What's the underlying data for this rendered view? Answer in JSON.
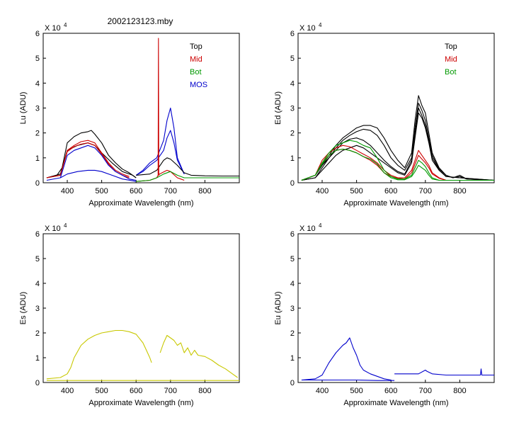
{
  "window_title": "2002123123.mby",
  "chart_data": [
    {
      "id": "lu",
      "type": "line",
      "xlabel": "Approximate Wavelength (nm)",
      "ylabel": "Lu (ADU)",
      "multiplier": "X 10",
      "exponent": "4",
      "xlim": [
        330,
        900
      ],
      "ylim": [
        0,
        6
      ],
      "xticks": [
        400,
        500,
        600,
        700,
        800
      ],
      "yticks": [
        0,
        1,
        2,
        3,
        4,
        5,
        6
      ],
      "legend_position": "top-right",
      "legend": [
        {
          "label": "Top",
          "color": "#000000"
        },
        {
          "label": "Mid",
          "color": "#cc0000"
        },
        {
          "label": "Bot",
          "color": "#009900"
        },
        {
          "label": "MOS",
          "color": "#0000cc"
        }
      ],
      "series": [
        {
          "color": "#000000",
          "x": [
            340,
            370,
            385,
            400,
            420,
            440,
            460,
            470,
            480,
            500,
            520,
            540,
            560,
            580,
            600
          ],
          "y": [
            0.2,
            0.3,
            0.6,
            1.6,
            1.85,
            2.0,
            2.05,
            2.1,
            1.95,
            1.6,
            1.1,
            0.8,
            0.55,
            0.4,
            0.2
          ]
        },
        {
          "color": "#000000",
          "x": [
            340,
            380,
            400,
            430,
            460,
            480,
            500,
            530,
            560,
            590,
            600
          ],
          "y": [
            0.2,
            0.35,
            1.3,
            1.5,
            1.6,
            1.5,
            1.2,
            0.8,
            0.45,
            0.3,
            0.2
          ]
        },
        {
          "color": "#cc0000",
          "x": [
            340,
            380,
            400,
            420,
            440,
            460,
            480,
            500,
            520,
            540,
            560,
            580
          ],
          "y": [
            0.2,
            0.3,
            1.3,
            1.5,
            1.65,
            1.7,
            1.6,
            1.2,
            0.8,
            0.5,
            0.35,
            0.25
          ]
        },
        {
          "color": "#cc0000",
          "x": [
            340,
            380,
            400,
            420,
            440,
            460,
            480,
            500,
            520,
            540,
            560,
            580
          ],
          "y": [
            0.2,
            0.3,
            1.25,
            1.45,
            1.55,
            1.6,
            1.5,
            1.15,
            0.75,
            0.45,
            0.3,
            0.2
          ]
        },
        {
          "color": "#0000cc",
          "x": [
            380,
            400,
            420,
            440,
            460,
            480,
            500,
            520,
            540,
            560,
            580,
            600
          ],
          "y": [
            0.2,
            1.1,
            1.3,
            1.4,
            1.5,
            1.4,
            1.1,
            0.7,
            0.45,
            0.3,
            0.15,
            0.1
          ]
        },
        {
          "color": "#0000cc",
          "x": [
            340,
            380,
            400,
            430,
            460,
            480,
            500,
            530,
            560,
            590,
            600
          ],
          "y": [
            0.1,
            0.2,
            0.35,
            0.45,
            0.5,
            0.5,
            0.45,
            0.3,
            0.15,
            0.08,
            0.05
          ]
        },
        {
          "color": "#0000cc",
          "x": [
            600,
            620,
            640,
            660,
            680,
            690,
            700,
            710,
            720,
            740
          ],
          "y": [
            0.3,
            0.5,
            0.8,
            1.0,
            1.7,
            2.5,
            3.0,
            2.2,
            1.0,
            0.35
          ]
        },
        {
          "color": "#0000cc",
          "x": [
            600,
            620,
            640,
            660,
            680,
            690,
            700,
            710,
            720,
            740
          ],
          "y": [
            0.3,
            0.45,
            0.7,
            0.9,
            1.3,
            1.8,
            2.1,
            1.6,
            0.9,
            0.35
          ]
        },
        {
          "color": "#000000",
          "x": [
            600,
            640,
            660,
            680,
            690,
            700,
            720,
            740,
            760,
            800,
            850,
            900
          ],
          "y": [
            0.3,
            0.35,
            0.5,
            0.9,
            1.0,
            0.95,
            0.7,
            0.4,
            0.3,
            0.28,
            0.27,
            0.27
          ]
        },
        {
          "color": "#cc0000",
          "x": [
            600,
            640,
            660,
            664,
            665,
            666,
            668,
            690,
            700,
            720,
            740
          ],
          "y": [
            0.05,
            0.1,
            0.2,
            0.3,
            5.8,
            0.3,
            0.35,
            0.5,
            0.45,
            0.2,
            0.1
          ]
        },
        {
          "color": "#009900",
          "x": [
            600,
            640,
            660,
            680,
            700,
            720,
            740,
            780,
            820,
            860,
            900
          ],
          "y": [
            0.05,
            0.1,
            0.2,
            0.35,
            0.45,
            0.3,
            0.2,
            0.2,
            0.2,
            0.2,
            0.2
          ]
        }
      ]
    },
    {
      "id": "ed",
      "type": "line",
      "xlabel": "Approximate Wavelength (nm)",
      "ylabel": "Ed  (ADU)",
      "multiplier": "X 10",
      "exponent": "4",
      "xlim": [
        330,
        900
      ],
      "ylim": [
        0,
        6
      ],
      "xticks": [
        400,
        500,
        600,
        700,
        800
      ],
      "yticks": [
        0,
        1,
        2,
        3,
        4,
        5,
        6
      ],
      "legend_position": "top-right",
      "legend": [
        {
          "label": "Top",
          "color": "#000000"
        },
        {
          "label": "Mid",
          "color": "#cc0000"
        },
        {
          "label": "Bot",
          "color": "#009900"
        }
      ],
      "series": [
        {
          "color": "#000000",
          "x": [
            340,
            380,
            400,
            420,
            440,
            460,
            480,
            500,
            520,
            540,
            560,
            580,
            600,
            620,
            640,
            660,
            670,
            680,
            690,
            700,
            710,
            720,
            740,
            760,
            780,
            800,
            820,
            900
          ],
          "y": [
            0.1,
            0.3,
            0.7,
            1.1,
            1.5,
            1.8,
            2.0,
            2.2,
            2.3,
            2.3,
            2.2,
            1.8,
            1.3,
            0.9,
            0.6,
            1.2,
            2.5,
            3.5,
            3.1,
            2.8,
            2.0,
            1.2,
            0.6,
            0.3,
            0.2,
            0.3,
            0.15,
            0.1
          ]
        },
        {
          "color": "#000000",
          "x": [
            340,
            380,
            400,
            420,
            440,
            460,
            480,
            500,
            520,
            540,
            560,
            580,
            600,
            620,
            640,
            660,
            670,
            680,
            690,
            700,
            710,
            720,
            740,
            760,
            780,
            800,
            820,
            900
          ],
          "y": [
            0.1,
            0.3,
            0.7,
            1.0,
            1.4,
            1.7,
            1.9,
            2.05,
            2.15,
            2.1,
            1.9,
            1.5,
            1.0,
            0.7,
            0.5,
            1.0,
            2.2,
            3.2,
            2.9,
            2.5,
            1.8,
            1.1,
            0.55,
            0.3,
            0.2,
            0.25,
            0.15,
            0.1
          ]
        },
        {
          "color": "#000000",
          "x": [
            340,
            380,
            400,
            420,
            440,
            460,
            480,
            500,
            520,
            540,
            560,
            580,
            600,
            620,
            640,
            660,
            670,
            680,
            690,
            700,
            710,
            720,
            740,
            760,
            800,
            900
          ],
          "y": [
            0.1,
            0.2,
            0.5,
            0.8,
            1.1,
            1.3,
            1.4,
            1.5,
            1.4,
            1.2,
            1.0,
            0.8,
            0.6,
            0.4,
            0.3,
            0.8,
            1.8,
            2.8,
            2.6,
            2.2,
            1.6,
            0.9,
            0.5,
            0.25,
            0.2,
            0.1
          ]
        },
        {
          "color": "#000000",
          "x": [
            340,
            380,
            400,
            420,
            440,
            460,
            480,
            500,
            520,
            540,
            560,
            580,
            600,
            620,
            640,
            660,
            670,
            680,
            690,
            700,
            710,
            720,
            740,
            760,
            800,
            900
          ],
          "y": [
            0.1,
            0.2,
            0.6,
            1.0,
            1.3,
            1.6,
            1.75,
            1.8,
            1.7,
            1.5,
            1.2,
            0.9,
            0.65,
            0.45,
            0.35,
            0.9,
            2.0,
            3.0,
            2.7,
            2.3,
            1.7,
            1.0,
            0.5,
            0.25,
            0.2,
            0.1
          ]
        },
        {
          "color": "#cc0000",
          "x": [
            340,
            380,
            400,
            420,
            440,
            460,
            480,
            500,
            520,
            540,
            560,
            580,
            600,
            620,
            640,
            660,
            670,
            680,
            690,
            700,
            710,
            720,
            740,
            760,
            900
          ],
          "y": [
            0.1,
            0.3,
            0.9,
            1.2,
            1.4,
            1.5,
            1.45,
            1.3,
            1.15,
            1.0,
            0.8,
            0.5,
            0.3,
            0.2,
            0.2,
            0.5,
            0.9,
            1.3,
            1.1,
            0.9,
            0.7,
            0.4,
            0.2,
            0.1,
            0.1
          ]
        },
        {
          "color": "#cc0000",
          "x": [
            340,
            380,
            400,
            420,
            440,
            460,
            480,
            500,
            520,
            540,
            560,
            580,
            600,
            620,
            640,
            660,
            670,
            680,
            690,
            700,
            710,
            720,
            740,
            760,
            900
          ],
          "y": [
            0.1,
            0.3,
            0.8,
            1.1,
            1.3,
            1.35,
            1.3,
            1.2,
            1.05,
            0.9,
            0.7,
            0.4,
            0.25,
            0.18,
            0.15,
            0.4,
            0.75,
            1.1,
            0.95,
            0.8,
            0.6,
            0.35,
            0.18,
            0.1,
            0.1
          ]
        },
        {
          "color": "#009900",
          "x": [
            340,
            380,
            400,
            420,
            440,
            460,
            480,
            500,
            520,
            540,
            560,
            580,
            600,
            620,
            640,
            660,
            670,
            680,
            690,
            700,
            710,
            720,
            740,
            900
          ],
          "y": [
            0.1,
            0.3,
            0.8,
            1.2,
            1.5,
            1.6,
            1.7,
            1.65,
            1.5,
            1.4,
            1.0,
            0.5,
            0.25,
            0.15,
            0.15,
            0.3,
            0.6,
            0.9,
            0.8,
            0.65,
            0.4,
            0.2,
            0.1,
            0.1
          ]
        },
        {
          "color": "#009900",
          "x": [
            340,
            380,
            400,
            420,
            440,
            460,
            480,
            500,
            520,
            540,
            560,
            580,
            600,
            620,
            640,
            660,
            670,
            680,
            690,
            700,
            710,
            720,
            740,
            900
          ],
          "y": [
            0.1,
            0.3,
            0.75,
            1.1,
            1.3,
            1.35,
            1.3,
            1.2,
            1.05,
            0.95,
            0.75,
            0.4,
            0.2,
            0.12,
            0.12,
            0.25,
            0.45,
            0.7,
            0.6,
            0.5,
            0.3,
            0.15,
            0.1,
            0.1
          ]
        }
      ]
    },
    {
      "id": "es",
      "type": "line",
      "xlabel": "Approximate Wavelength (nm)",
      "ylabel": "Es  (ADU)",
      "multiplier": "X 10",
      "exponent": "4",
      "xlim": [
        330,
        900
      ],
      "ylim": [
        0,
        6
      ],
      "xticks": [
        400,
        500,
        600,
        700,
        800
      ],
      "yticks": [
        0,
        1,
        2,
        3,
        4,
        5,
        6
      ],
      "series": [
        {
          "color": "#c8c800",
          "x": [
            340,
            380,
            400,
            410,
            420,
            440,
            460,
            480,
            500,
            520,
            540,
            560,
            580,
            600,
            620,
            630,
            640,
            645
          ],
          "y": [
            0.15,
            0.2,
            0.35,
            0.6,
            1.0,
            1.5,
            1.75,
            1.9,
            2.0,
            2.05,
            2.1,
            2.1,
            2.05,
            1.95,
            1.6,
            1.3,
            1.0,
            0.8
          ]
        },
        {
          "color": "#c8c800",
          "x": [
            670,
            680,
            690,
            700,
            710,
            720,
            730,
            740,
            750,
            760,
            770,
            780,
            800,
            820,
            840,
            860,
            880,
            895
          ],
          "y": [
            1.2,
            1.6,
            1.9,
            1.8,
            1.7,
            1.5,
            1.6,
            1.2,
            1.4,
            1.1,
            1.3,
            1.1,
            1.05,
            0.9,
            0.7,
            0.55,
            0.35,
            0.2
          ]
        },
        {
          "color": "#c8c800",
          "x": [
            340,
            900
          ],
          "y": [
            0.08,
            0.08
          ]
        }
      ]
    },
    {
      "id": "eu",
      "type": "line",
      "xlabel": "Approximate Wavelength (nm)",
      "ylabel": "Eu  (ADU)",
      "multiplier": "X 10",
      "exponent": "4",
      "xlim": [
        330,
        900
      ],
      "ylim": [
        0,
        6
      ],
      "xticks": [
        400,
        500,
        600,
        700,
        800
      ],
      "yticks": [
        0,
        1,
        2,
        3,
        4,
        5,
        6
      ],
      "series": [
        {
          "color": "#0000cc",
          "x": [
            340,
            380,
            400,
            420,
            440,
            460,
            470,
            480,
            490,
            500,
            510,
            520,
            540,
            560,
            580,
            600
          ],
          "y": [
            0.1,
            0.15,
            0.3,
            0.8,
            1.2,
            1.5,
            1.6,
            1.8,
            1.4,
            1.1,
            0.7,
            0.5,
            0.35,
            0.25,
            0.15,
            0.1
          ]
        },
        {
          "color": "#0000cc",
          "x": [
            340,
            450,
            500,
            560,
            600,
            610
          ],
          "y": [
            0.1,
            0.1,
            0.1,
            0.08,
            0.08,
            0.08
          ]
        },
        {
          "color": "#0000cc",
          "x": [
            610,
            650,
            680,
            700,
            705,
            720,
            760,
            800,
            850,
            860,
            862,
            864,
            880,
            900
          ],
          "y": [
            0.35,
            0.35,
            0.35,
            0.5,
            0.45,
            0.35,
            0.3,
            0.3,
            0.3,
            0.3,
            0.55,
            0.3,
            0.3,
            0.3
          ]
        }
      ]
    }
  ]
}
